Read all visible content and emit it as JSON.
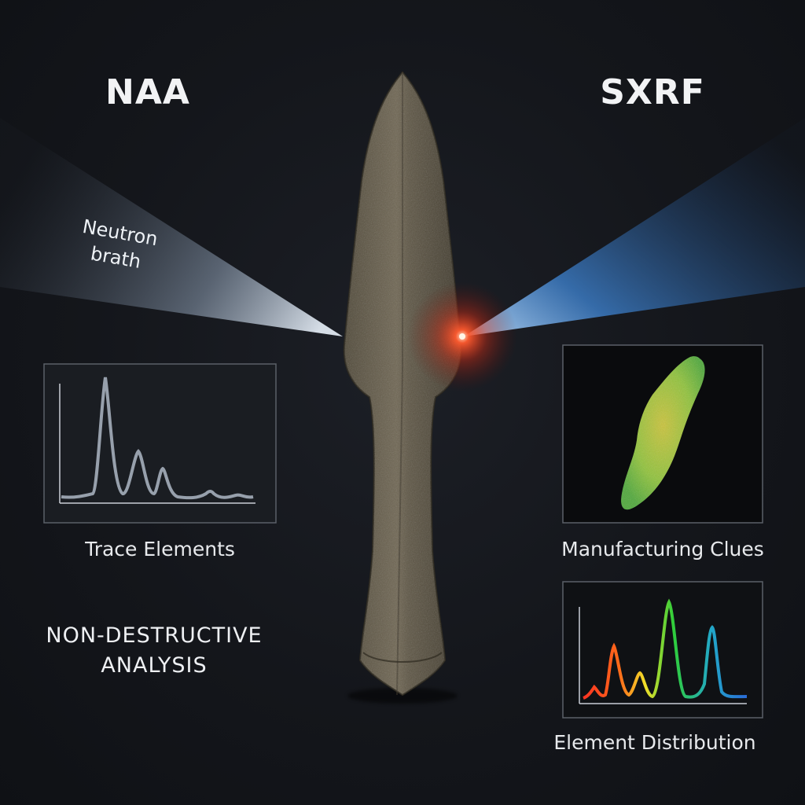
{
  "left_technique": {
    "heading": "NAA",
    "beam_label_line1": "Neutron",
    "beam_label_line2": "brath",
    "panel_caption": "Trace Elements"
  },
  "right_technique": {
    "heading": "SXRF",
    "map_caption": "Manufacturing Clues",
    "spectrum_caption": "Element Distribution"
  },
  "tagline": {
    "line1": "NON-DESTRUCTIVE",
    "line2": "ANALYSIS"
  },
  "colors": {
    "neutron_beam": "#aebdd0",
    "xray_beam": "#3f86d6",
    "impact_glow": "#ff4a2a",
    "artifact": "#6b6250"
  }
}
